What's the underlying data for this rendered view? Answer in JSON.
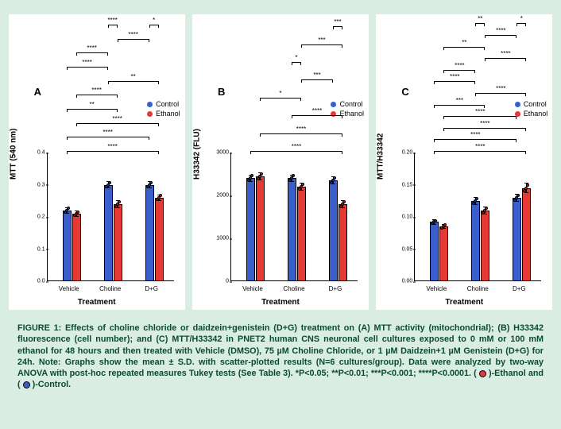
{
  "legend": {
    "control": "Control",
    "ethanol": "Ethanol",
    "control_color": "#3a5fcd",
    "ethanol_color": "#e53935"
  },
  "x": {
    "categories": [
      "Vehicle",
      "Choline",
      "D+G"
    ],
    "label": "Treatment"
  },
  "panels": {
    "A": {
      "label": "A",
      "ylabel": "MTT (540 nm)",
      "ylim": [
        0,
        0.4
      ],
      "ytick_step": 0.1,
      "ytick_fmt": "dec1",
      "bars": {
        "control": [
          0.22,
          0.3,
          0.3
        ],
        "ethanol": [
          0.21,
          0.24,
          0.26
        ],
        "sd_control": [
          0.01,
          0.012,
          0.012
        ],
        "sd_ethanol": [
          0.01,
          0.012,
          0.01
        ]
      },
      "sig": [
        {
          "f": {
            "g": 0,
            "s": 0
          },
          "t": {
            "g": 2,
            "s": 1
          },
          "lvl": 0,
          "stars": "****"
        },
        {
          "f": {
            "g": 0,
            "s": 0
          },
          "t": {
            "g": 2,
            "s": 0
          },
          "lvl": 1,
          "stars": "****"
        },
        {
          "f": {
            "g": 0,
            "s": 1
          },
          "t": {
            "g": 2,
            "s": 1
          },
          "lvl": 2,
          "stars": "****"
        },
        {
          "f": {
            "g": 0,
            "s": 0
          },
          "t": {
            "g": 1,
            "s": 1
          },
          "lvl": 3,
          "stars": "**"
        },
        {
          "f": {
            "g": 0,
            "s": 1
          },
          "t": {
            "g": 1,
            "s": 1
          },
          "lvl": 4,
          "stars": "****"
        },
        {
          "f": {
            "g": 1,
            "s": 0
          },
          "t": {
            "g": 2,
            "s": 1
          },
          "lvl": 5,
          "stars": "**"
        },
        {
          "f": {
            "g": 0,
            "s": 0
          },
          "t": {
            "g": 1,
            "s": 0
          },
          "lvl": 6,
          "stars": "****"
        },
        {
          "f": {
            "g": 0,
            "s": 1
          },
          "t": {
            "g": 1,
            "s": 0
          },
          "lvl": 7,
          "stars": "****"
        },
        {
          "f": {
            "g": 1,
            "s": 1
          },
          "t": {
            "g": 2,
            "s": 0
          },
          "lvl": 8,
          "stars": "****"
        },
        {
          "f": {
            "g": 1,
            "s": 0
          },
          "t": {
            "g": 1,
            "s": 1
          },
          "lvl": 9,
          "stars": "****"
        },
        {
          "f": {
            "g": 2,
            "s": 0
          },
          "t": {
            "g": 2,
            "s": 1
          },
          "lvl": 9,
          "stars": "*"
        }
      ]
    },
    "B": {
      "label": "B",
      "ylabel": "H33342 (FLU)",
      "ylim": [
        0,
        3000
      ],
      "ytick_step": 1000,
      "ytick_fmt": "int",
      "bars": {
        "control": [
          2400,
          2400,
          2350
        ],
        "ethanol": [
          2450,
          2200,
          1800
        ],
        "sd_control": [
          90,
          90,
          90
        ],
        "sd_ethanol": [
          90,
          90,
          90
        ]
      },
      "sig": [
        {
          "f": {
            "g": 0,
            "s": 0
          },
          "t": {
            "g": 2,
            "s": 1
          },
          "lvl": 0,
          "stars": "****"
        },
        {
          "f": {
            "g": 0,
            "s": 1
          },
          "t": {
            "g": 2,
            "s": 1
          },
          "lvl": 1,
          "stars": "****"
        },
        {
          "f": {
            "g": 1,
            "s": 0
          },
          "t": {
            "g": 2,
            "s": 1
          },
          "lvl": 2,
          "stars": "****"
        },
        {
          "f": {
            "g": 0,
            "s": 1
          },
          "t": {
            "g": 1,
            "s": 1
          },
          "lvl": 3,
          "stars": "*"
        },
        {
          "f": {
            "g": 1,
            "s": 1
          },
          "t": {
            "g": 2,
            "s": 0
          },
          "lvl": 4,
          "stars": "***"
        },
        {
          "f": {
            "g": 1,
            "s": 0
          },
          "t": {
            "g": 1,
            "s": 1
          },
          "lvl": 5,
          "stars": "*"
        },
        {
          "f": {
            "g": 1,
            "s": 1
          },
          "t": {
            "g": 2,
            "s": 1
          },
          "lvl": 6,
          "stars": "***"
        },
        {
          "f": {
            "g": 2,
            "s": 0
          },
          "t": {
            "g": 2,
            "s": 1
          },
          "lvl": 7,
          "stars": "***"
        }
      ]
    },
    "C": {
      "label": "C",
      "ylabel": "MTT/H33342",
      "ylim": [
        0,
        0.2
      ],
      "ytick_step": 0.05,
      "ytick_fmt": "dec2",
      "bars": {
        "control": [
          0.092,
          0.125,
          0.13
        ],
        "ethanol": [
          0.085,
          0.11,
          0.145
        ],
        "sd_control": [
          0.004,
          0.006,
          0.006
        ],
        "sd_ethanol": [
          0.004,
          0.006,
          0.008
        ]
      },
      "sig": [
        {
          "f": {
            "g": 0,
            "s": 0
          },
          "t": {
            "g": 2,
            "s": 1
          },
          "lvl": 0,
          "stars": "****"
        },
        {
          "f": {
            "g": 0,
            "s": 0
          },
          "t": {
            "g": 2,
            "s": 0
          },
          "lvl": 1,
          "stars": "****"
        },
        {
          "f": {
            "g": 0,
            "s": 1
          },
          "t": {
            "g": 2,
            "s": 1
          },
          "lvl": 2,
          "stars": "****"
        },
        {
          "f": {
            "g": 0,
            "s": 1
          },
          "t": {
            "g": 2,
            "s": 0
          },
          "lvl": 3,
          "stars": "****"
        },
        {
          "f": {
            "g": 0,
            "s": 0
          },
          "t": {
            "g": 1,
            "s": 1
          },
          "lvl": 4,
          "stars": "***"
        },
        {
          "f": {
            "g": 1,
            "s": 0
          },
          "t": {
            "g": 2,
            "s": 1
          },
          "lvl": 5,
          "stars": "****"
        },
        {
          "f": {
            "g": 0,
            "s": 0
          },
          "t": {
            "g": 1,
            "s": 0
          },
          "lvl": 6,
          "stars": "****"
        },
        {
          "f": {
            "g": 0,
            "s": 1
          },
          "t": {
            "g": 1,
            "s": 0
          },
          "lvl": 7,
          "stars": "****"
        },
        {
          "f": {
            "g": 1,
            "s": 1
          },
          "t": {
            "g": 2,
            "s": 1
          },
          "lvl": 8,
          "stars": "****"
        },
        {
          "f": {
            "g": 0,
            "s": 1
          },
          "t": {
            "g": 1,
            "s": 1
          },
          "lvl": 9,
          "stars": "**"
        },
        {
          "f": {
            "g": 1,
            "s": 1
          },
          "t": {
            "g": 2,
            "s": 0
          },
          "lvl": 10,
          "stars": "****"
        },
        {
          "f": {
            "g": 1,
            "s": 0
          },
          "t": {
            "g": 1,
            "s": 1
          },
          "lvl": 11,
          "stars": "**"
        },
        {
          "f": {
            "g": 2,
            "s": 0
          },
          "t": {
            "g": 2,
            "s": 1
          },
          "lvl": 11,
          "stars": "*"
        }
      ]
    }
  },
  "caption": {
    "t1": "FIGURE 1: Effects of choline chloride or daidzein+genistein (D+G) treatment on (A) MTT activity (mitochondrial); (B) H33342 fluorescence (cell number); and (C) MTT/H33342 in PNET2 human CNS neuronal cell cultures exposed to 0 mM or 100 mM ethanol for 48 hours and then treated with Vehicle (DMSO), 75 µM Choline Chloride, or 1 µM Daidzein+1 µM Genistein (D+G) for 24h. Note: Graphs show the mean ± S.D. with scatter-plotted results (N=6 cultures/group). Data were analyzed by two-way ANOVA with post-hoc repeated measures Tukey tests (See Table 3). *P<0.05; **P<0.01; ***P<0.001; ****P<0.0001. (",
    "t2": ")-Ethanol and (",
    "t3": ")-Control."
  }
}
